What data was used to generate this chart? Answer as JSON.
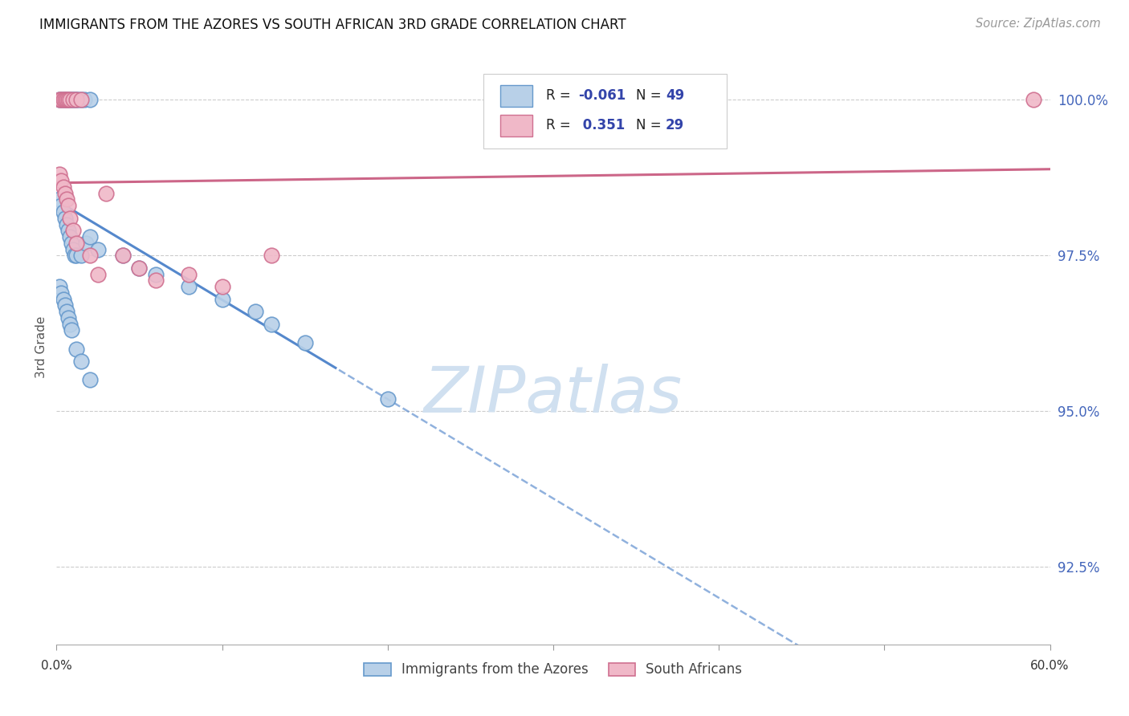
{
  "title": "IMMIGRANTS FROM THE AZORES VS SOUTH AFRICAN 3RD GRADE CORRELATION CHART",
  "source": "Source: ZipAtlas.com",
  "ylabel": "3rd Grade",
  "ytick_labels": [
    "92.5%",
    "95.0%",
    "97.5%",
    "100.0%"
  ],
  "ytick_values": [
    0.925,
    0.95,
    0.975,
    1.0
  ],
  "xlim": [
    0.0,
    0.6
  ],
  "ylim": [
    0.9125,
    1.008
  ],
  "legend_blue_label": "Immigrants from the Azores",
  "legend_pink_label": "South Africans",
  "R_blue": -0.061,
  "N_blue": 49,
  "R_pink": 0.351,
  "N_pink": 29,
  "blue_fill": "#b8d0e8",
  "blue_edge": "#6699cc",
  "pink_fill": "#f0b8c8",
  "pink_edge": "#d07090",
  "blue_line": "#5588cc",
  "pink_line": "#cc6688",
  "legend_text_color": "#3344aa",
  "watermark_color": "#d0e0f0",
  "grid_color": "#cccccc",
  "ytick_color": "#4466bb"
}
